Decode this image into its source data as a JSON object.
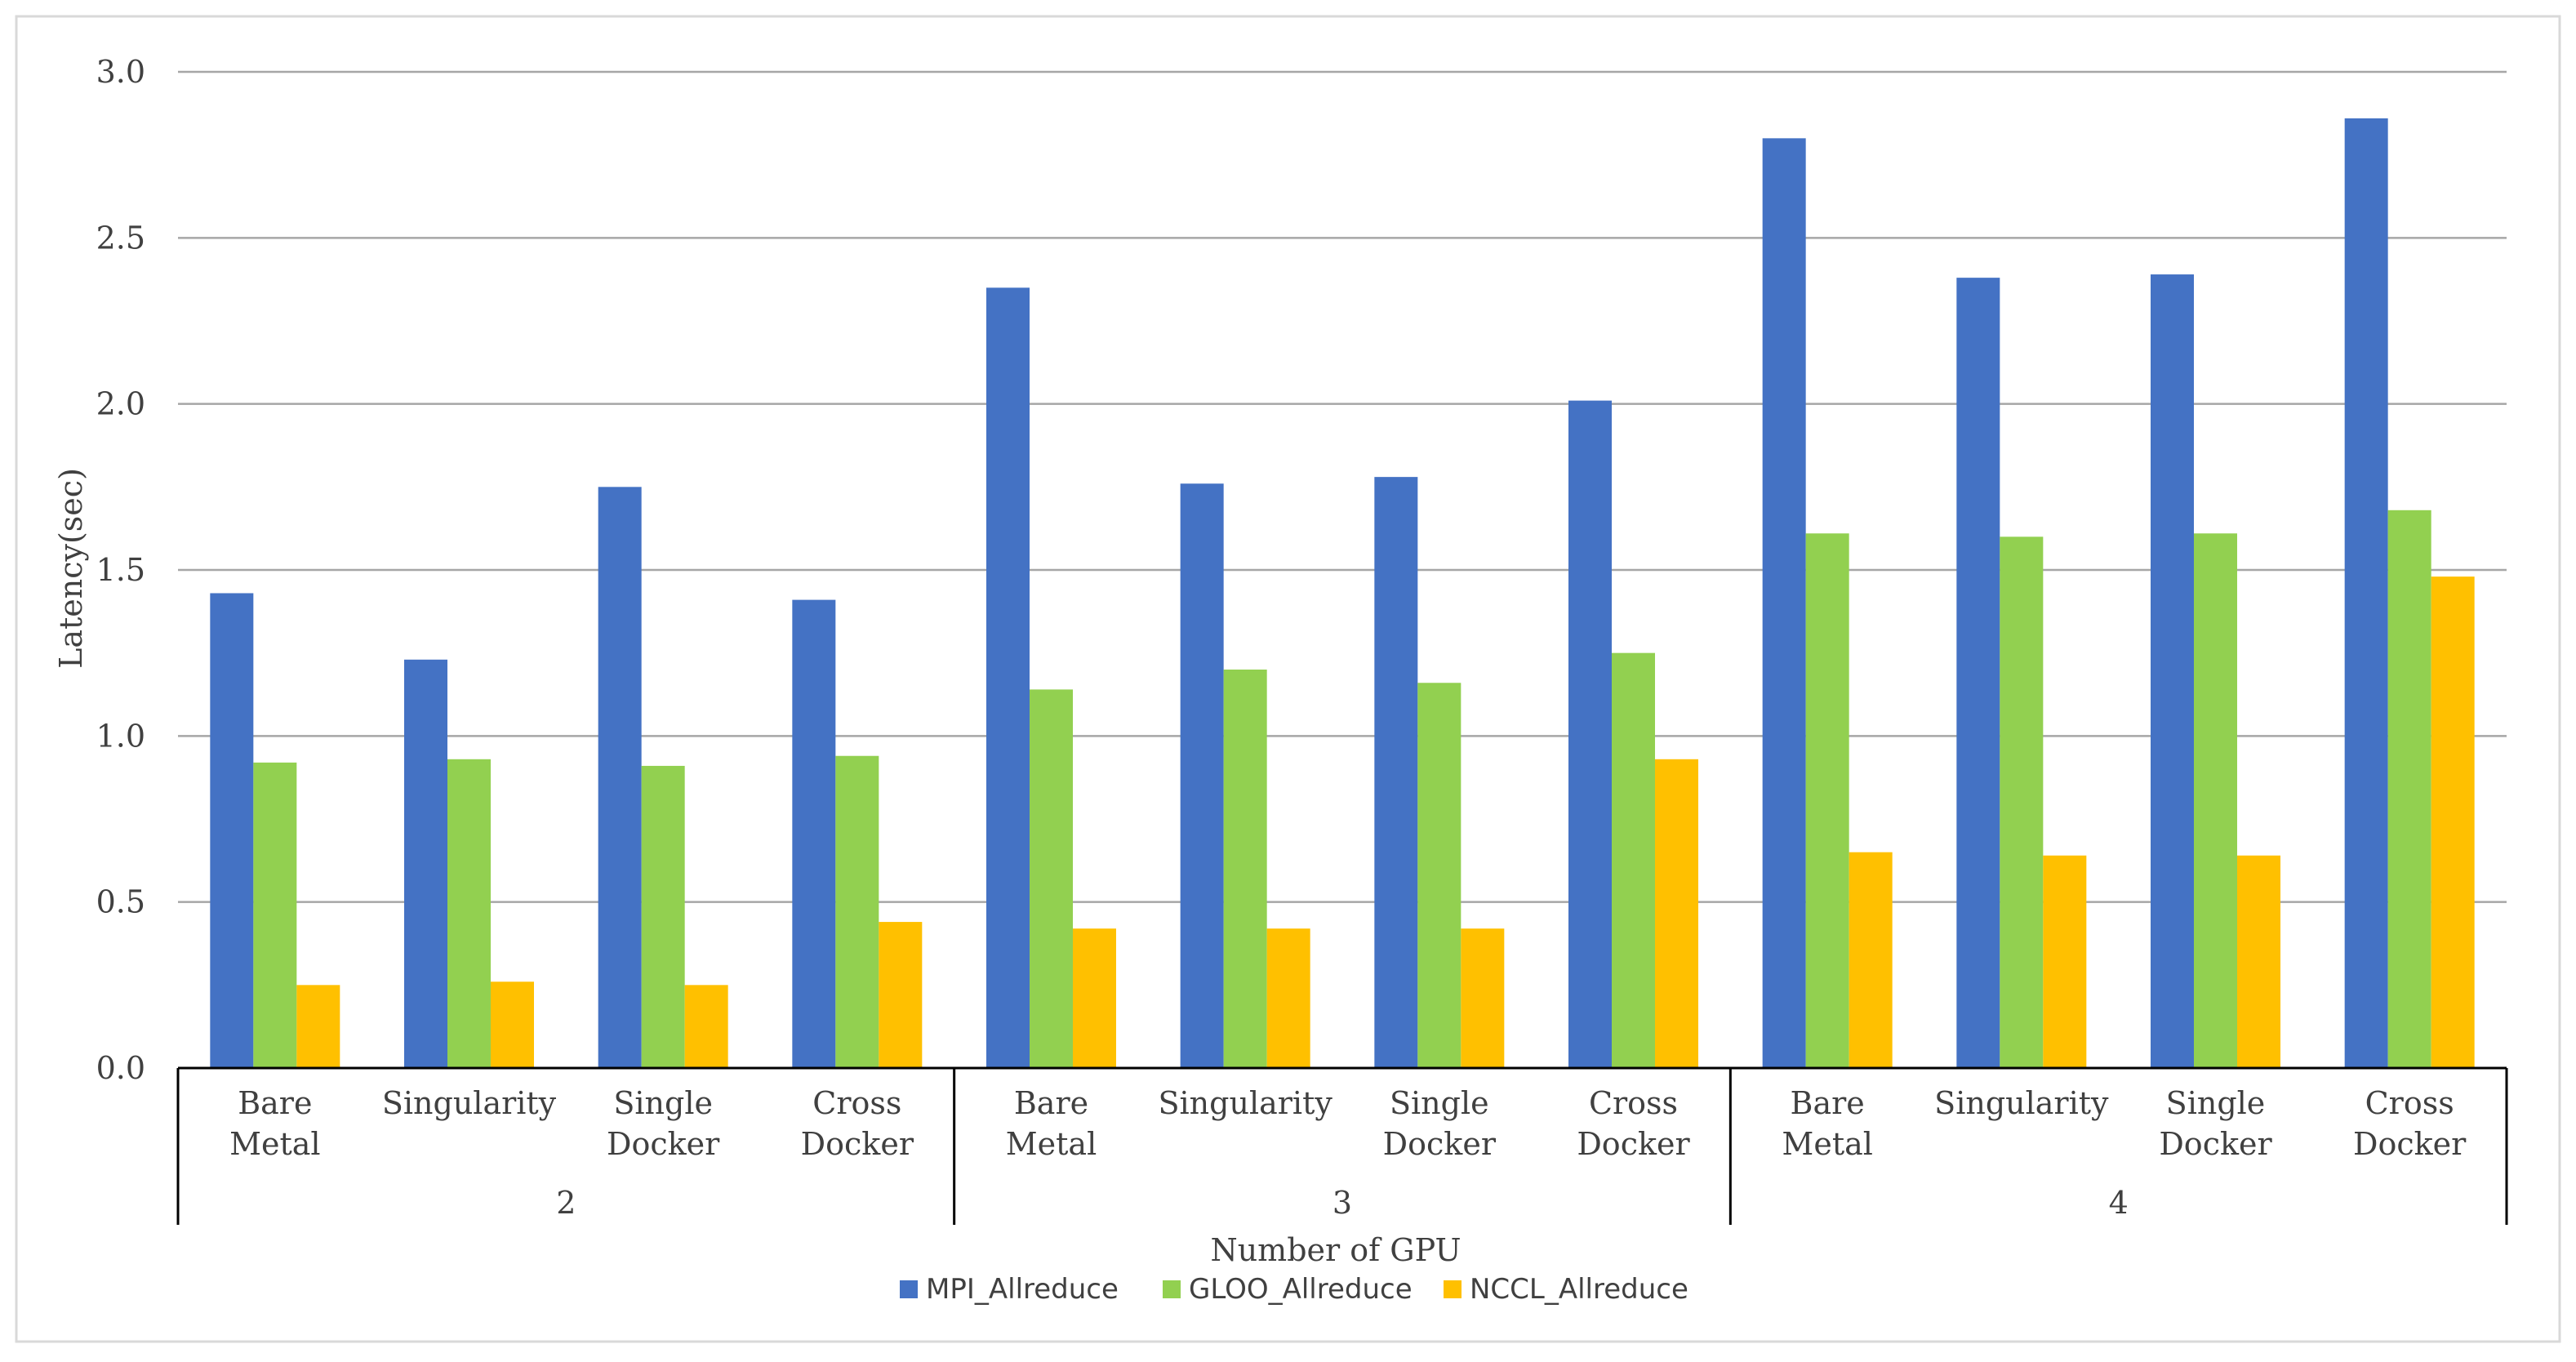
{
  "chart_data": {
    "type": "bar",
    "title": "",
    "ylabel": "Latency(sec)",
    "xlabel": "Number of GPU",
    "ylim": [
      0,
      3.0
    ],
    "y_ticks": [
      "0.0",
      "0.5",
      "1.0",
      "1.5",
      "2.0",
      "2.5",
      "3.0"
    ],
    "grid": true,
    "legend_position": "bottom-center",
    "groups": [
      {
        "label": "2",
        "categories": [
          [
            "Bare",
            "Metal"
          ],
          [
            "Singularity"
          ],
          [
            "Single",
            "Docker"
          ],
          [
            "Cross",
            "Docker"
          ]
        ]
      },
      {
        "label": "3",
        "categories": [
          [
            "Bare",
            "Metal"
          ],
          [
            "Singularity"
          ],
          [
            "Single",
            "Docker"
          ],
          [
            "Cross",
            "Docker"
          ]
        ]
      },
      {
        "label": "4",
        "categories": [
          [
            "Bare",
            "Metal"
          ],
          [
            "Singularity"
          ],
          [
            "Single",
            "Docker"
          ],
          [
            "Cross",
            "Docker"
          ]
        ]
      }
    ],
    "series": [
      {
        "name": "MPI_Allreduce",
        "color": "#4472C4",
        "values": [
          1.43,
          1.23,
          1.75,
          1.41,
          2.35,
          1.76,
          1.78,
          2.01,
          2.8,
          2.38,
          2.39,
          2.86
        ]
      },
      {
        "name": "GLOO_Allreduce",
        "color": "#92D050",
        "values": [
          0.92,
          0.93,
          0.91,
          0.94,
          1.14,
          1.2,
          1.16,
          1.25,
          1.61,
          1.6,
          1.61,
          1.68
        ]
      },
      {
        "name": "NCCL_Allreduce",
        "color": "#FFC000",
        "values": [
          0.25,
          0.26,
          0.25,
          0.44,
          0.42,
          0.42,
          0.42,
          0.93,
          0.65,
          0.64,
          0.64,
          1.48
        ]
      }
    ]
  }
}
